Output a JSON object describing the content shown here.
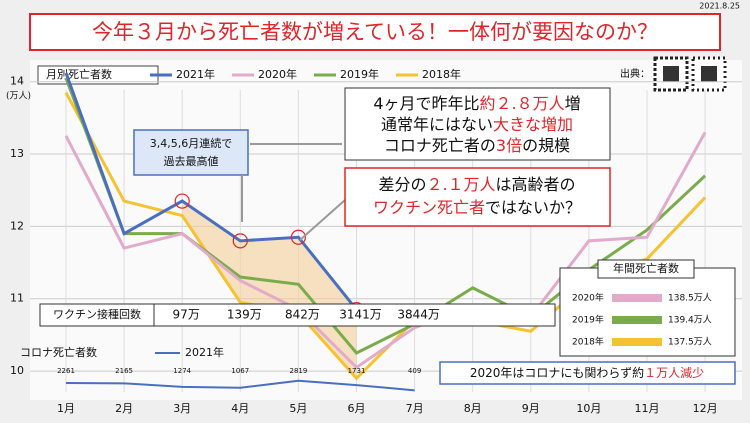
{
  "date": "2021.8.25",
  "headline": "今年３月から死亡者数が増えている！一体何が要因なのか？",
  "source_label": "出典：",
  "chart_data": {
    "type": "line",
    "title": "月別死亡者数",
    "y_unit": "(万人)",
    "categories": [
      "1月",
      "2月",
      "3月",
      "4月",
      "5月",
      "6月",
      "7月",
      "8月",
      "9月",
      "10月",
      "11月",
      "12月"
    ],
    "ylim": [
      9.6,
      14.3
    ],
    "yticks": [
      10,
      11,
      12,
      13,
      14
    ],
    "grid": true,
    "series": [
      {
        "name": "2021年",
        "color": "#4a6fc0",
        "values": [
          14.12,
          11.9,
          12.35,
          11.8,
          11.85,
          10.85,
          null,
          null,
          null,
          null,
          null,
          null
        ]
      },
      {
        "name": "2020年",
        "color": "#e2aacb",
        "values": [
          13.25,
          11.7,
          11.9,
          11.25,
          10.85,
          10.05,
          10.6,
          10.9,
          10.75,
          11.8,
          11.85,
          13.3
        ]
      },
      {
        "name": "2019年",
        "color": "#7aac4c",
        "values": [
          14.05,
          11.9,
          11.9,
          11.3,
          11.2,
          10.25,
          10.65,
          11.15,
          10.75,
          11.4,
          11.95,
          12.7
        ]
      },
      {
        "name": "2018年",
        "color": "#f5c232",
        "values": [
          13.85,
          12.35,
          12.15,
          10.95,
          10.8,
          9.9,
          10.7,
          10.7,
          10.55,
          11.25,
          11.55,
          12.4
        ]
      }
    ]
  },
  "vaccinations": {
    "label": "ワクチン接種回数",
    "values": [
      "97万",
      "139万",
      "842万",
      "3141万",
      "3844万"
    ]
  },
  "covid_deaths": {
    "label": "コロナ死亡者数",
    "series_name": "2021年",
    "color": "#4a6fc0",
    "values": [
      2261,
      2165,
      1274,
      1067,
      2819,
      1731,
      409
    ]
  },
  "callout": [
    "3,4,5,6月連続で",
    "過去最高値"
  ],
  "box1": [
    [
      {
        "text": "4ヶ月で昨年比"
      },
      {
        "text": "約２.８万人",
        "em": true
      },
      {
        "text": "増"
      }
    ],
    [
      {
        "text": "通常年にはない"
      },
      {
        "text": "大きな増加",
        "em": true
      }
    ],
    [
      {
        "text": "コロナ死亡者の"
      },
      {
        "text": "3倍",
        "em": true
      },
      {
        "text": "の規模"
      }
    ]
  ],
  "box2": [
    [
      {
        "text": "差分の"
      },
      {
        "text": "２.１万人",
        "em": true
      },
      {
        "text": "は高齢者の"
      }
    ],
    [
      {
        "text": "ワクチン死亡者",
        "em": true
      },
      {
        "text": "ではないか？"
      }
    ]
  ],
  "annual": {
    "title": "年間死亡者数",
    "rows": [
      {
        "year": "2020年",
        "value": "138.5万人",
        "color": "#e2aacb"
      },
      {
        "year": "2019年",
        "value": "139.4万人",
        "color": "#7aac4c"
      },
      {
        "year": "2018年",
        "value": "137.5万人",
        "color": "#f5c232"
      }
    ]
  },
  "note": [
    {
      "text": "2020年はコロナにも関わらず約"
    },
    {
      "text": "１万人減少",
      "em": true
    }
  ]
}
